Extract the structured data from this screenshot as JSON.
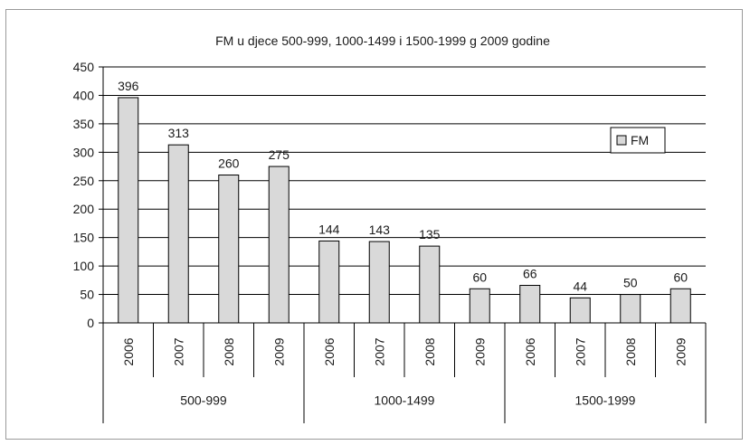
{
  "chart_data": {
    "type": "bar",
    "title": "FM u djece 500-999, 1000-1499 i 1500-1999 g 2009 godine",
    "xlabel": "",
    "ylabel": "",
    "ylim": [
      0,
      450
    ],
    "yticks": [
      0,
      50,
      100,
      150,
      200,
      250,
      300,
      350,
      400,
      450
    ],
    "grid": true,
    "legend_position": "right",
    "groups": [
      {
        "label": "500-999",
        "categories": [
          "2006",
          "2007",
          "2008",
          "2009"
        ]
      },
      {
        "label": "1000-1499",
        "categories": [
          "2006",
          "2007",
          "2008",
          "2009"
        ]
      },
      {
        "label": "1500-1999",
        "categories": [
          "2006",
          "2007",
          "2008",
          "2009"
        ]
      }
    ],
    "series": [
      {
        "name": "FM",
        "values": [
          396,
          313,
          260,
          275,
          144,
          143,
          135,
          60,
          66,
          44,
          50,
          60
        ]
      }
    ],
    "colors": {
      "bar_fill": "#d9d9d9",
      "bar_stroke": "#000000",
      "grid": "#000000"
    }
  }
}
